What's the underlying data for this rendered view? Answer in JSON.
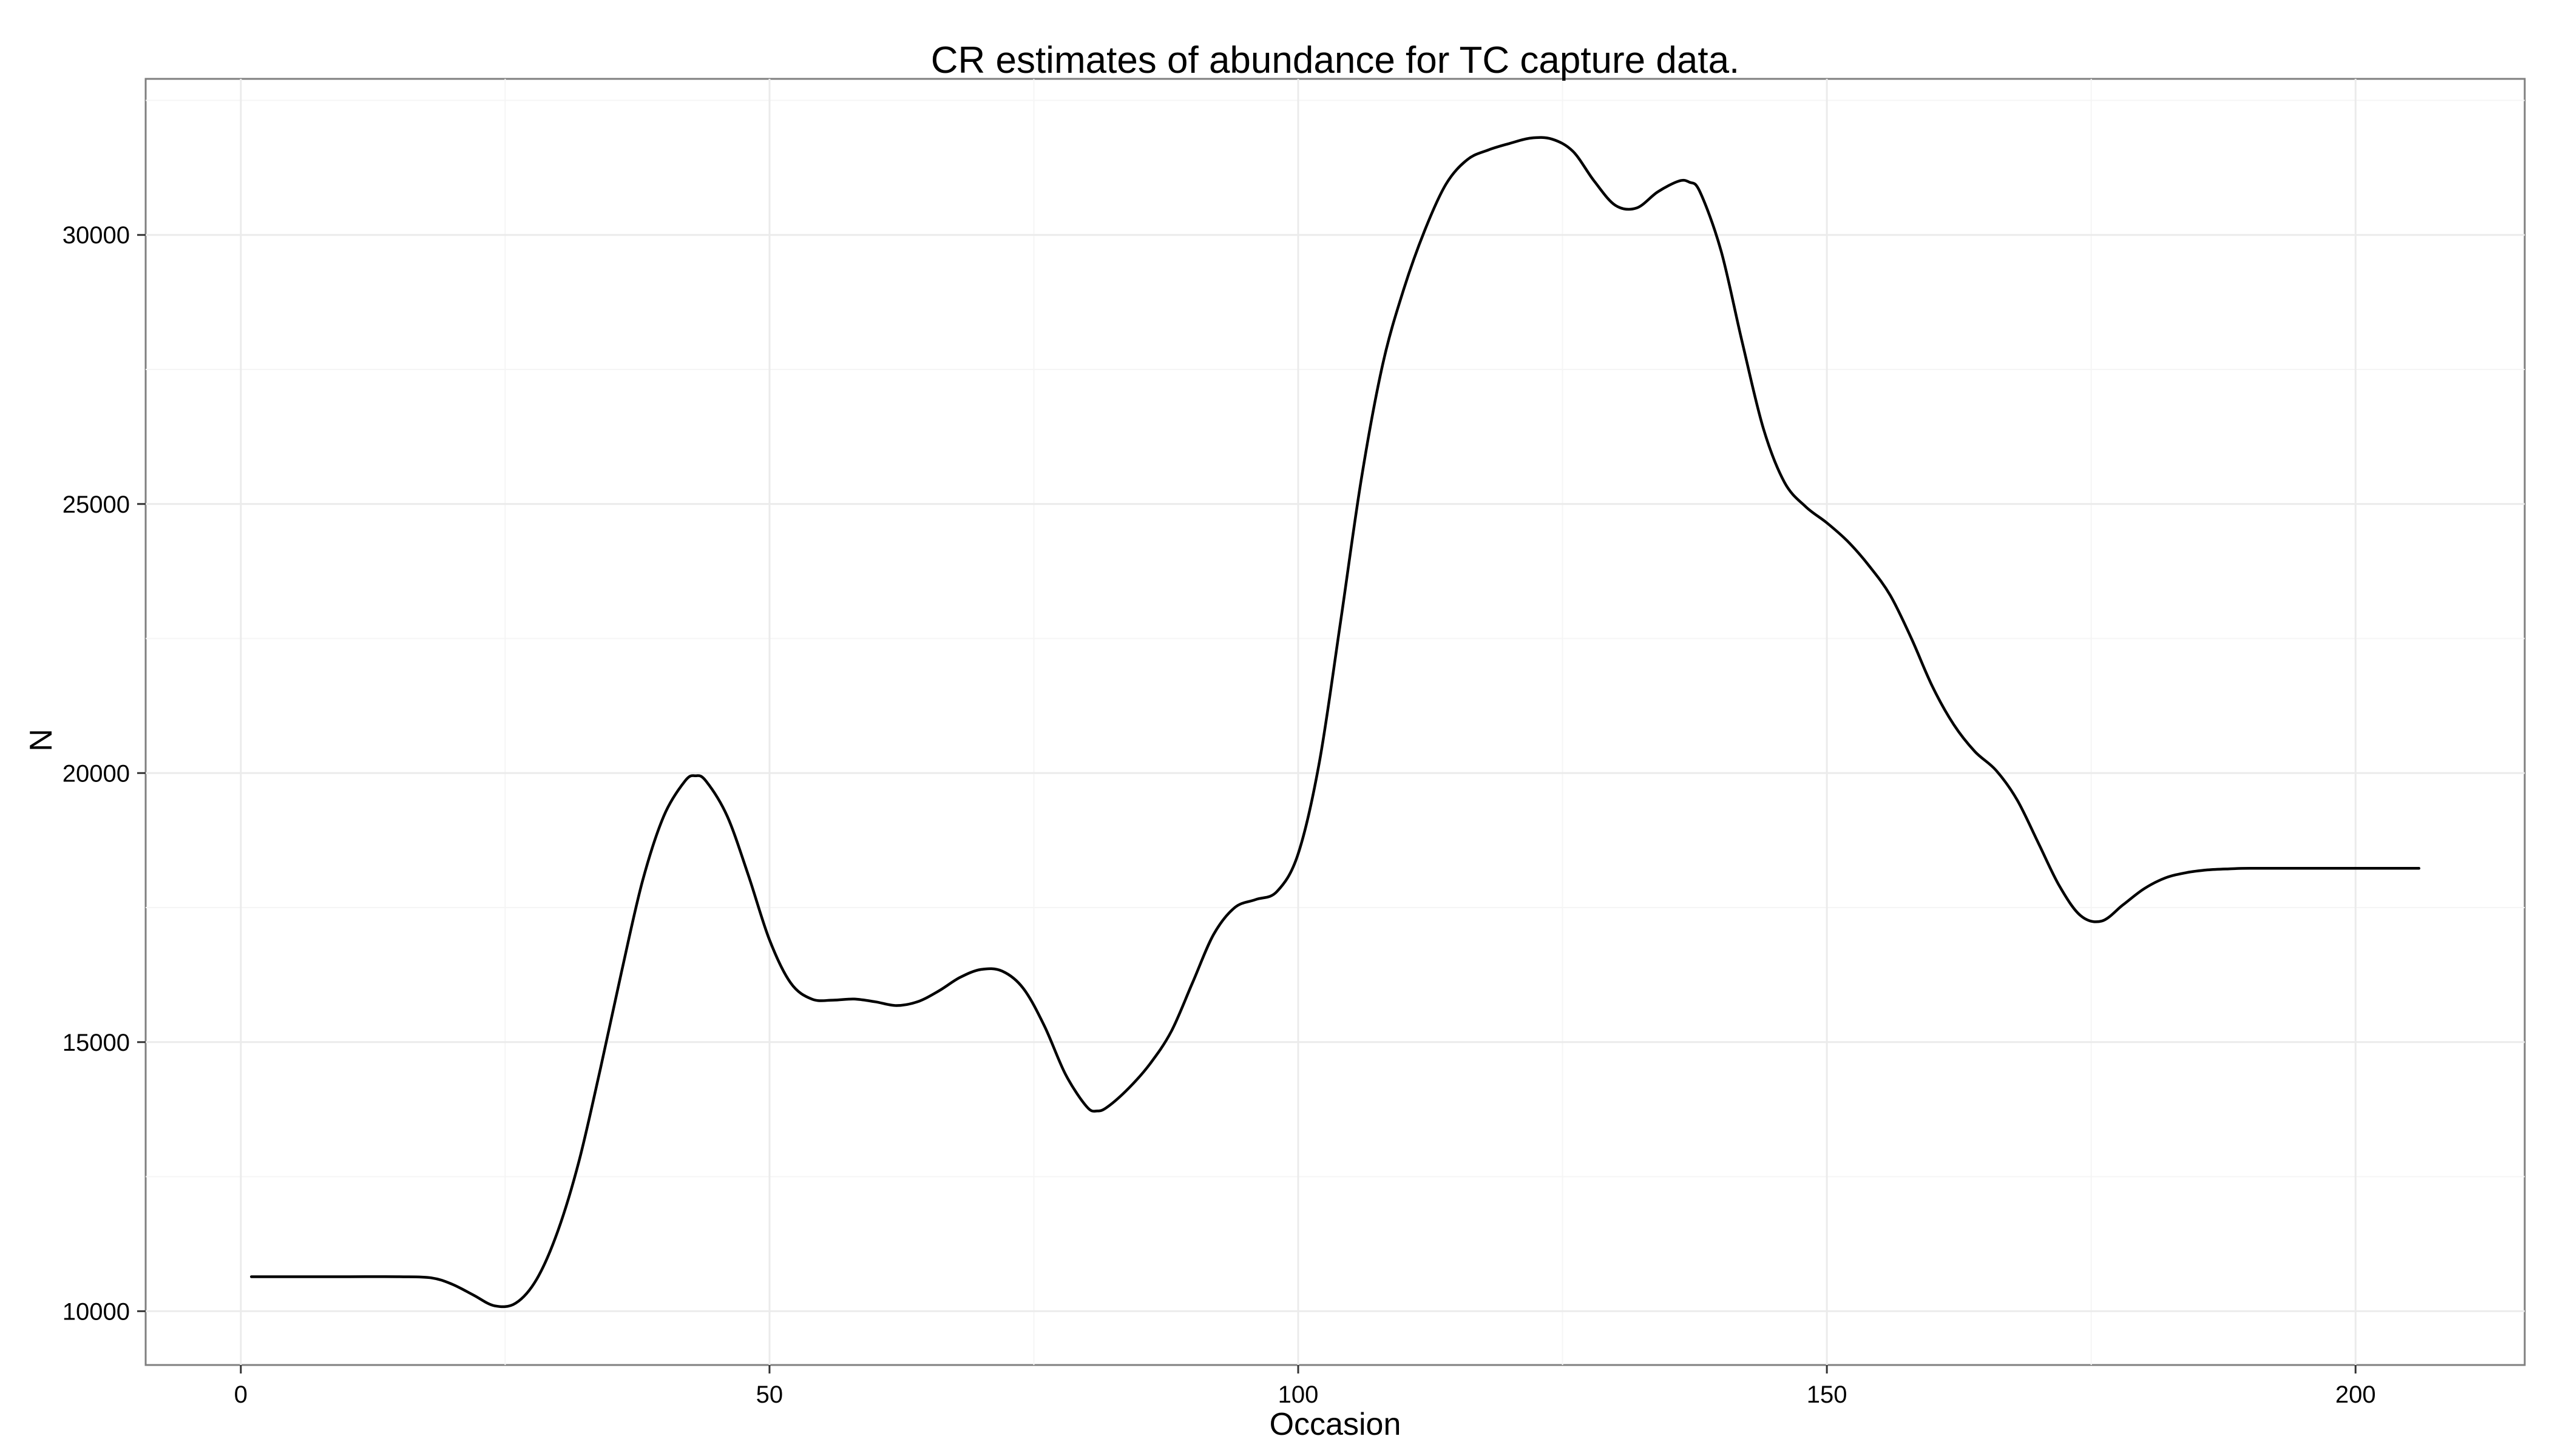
{
  "chart_data": {
    "type": "line",
    "title": "CR estimates of abundance for TC capture data.",
    "xlabel": "Occasion",
    "ylabel": "N",
    "xlim": [
      -9,
      216
    ],
    "ylim": [
      9000,
      32900
    ],
    "x_ticks": [
      0,
      50,
      100,
      150,
      200
    ],
    "y_ticks": [
      10000,
      15000,
      20000,
      25000,
      30000
    ],
    "x_tick_labels": [
      "0",
      "50",
      "100",
      "150",
      "200"
    ],
    "y_tick_labels": [
      "10000",
      "15000",
      "20000",
      "25000",
      "30000"
    ],
    "grid": true,
    "line_color": "#000000",
    "series": [
      {
        "x": [
          1,
          5,
          10,
          15,
          18,
          20,
          22,
          24,
          26,
          28,
          30,
          32,
          34,
          36,
          38,
          40,
          42,
          43,
          44,
          46,
          48,
          50,
          52,
          54,
          56,
          58,
          60,
          62,
          64,
          66,
          68,
          70,
          72,
          74,
          76,
          78,
          80,
          81,
          82,
          84,
          86,
          88,
          90,
          92,
          94,
          96,
          98,
          100,
          102,
          104,
          106,
          108,
          110,
          112,
          114,
          116,
          118,
          120,
          122,
          124,
          126,
          128,
          130,
          132,
          134,
          136,
          137,
          138,
          140,
          142,
          144,
          146,
          148,
          150,
          152,
          154,
          156,
          158,
          160,
          162,
          164,
          166,
          168,
          170,
          172,
          174,
          176,
          178,
          180,
          182,
          184,
          186,
          188,
          190,
          195,
          200,
          206
        ],
        "y": [
          10640,
          10640,
          10640,
          10640,
          10620,
          10500,
          10300,
          10100,
          10150,
          10600,
          11500,
          12800,
          14500,
          16300,
          18000,
          19200,
          19850,
          19950,
          19850,
          19200,
          18100,
          16900,
          16100,
          15800,
          15780,
          15800,
          15750,
          15680,
          15750,
          15950,
          16200,
          16350,
          16320,
          16000,
          15300,
          14400,
          13800,
          13720,
          13800,
          14150,
          14600,
          15200,
          16100,
          17000,
          17500,
          17650,
          17800,
          18500,
          20200,
          22800,
          25500,
          27600,
          29000,
          30100,
          30950,
          31400,
          31580,
          31700,
          31800,
          31780,
          31550,
          31000,
          30550,
          30500,
          30800,
          31000,
          30980,
          30800,
          29700,
          28000,
          26400,
          25400,
          24950,
          24650,
          24300,
          23850,
          23300,
          22500,
          21600,
          20900,
          20400,
          20050,
          19500,
          18700,
          17900,
          17350,
          17250,
          17550,
          17850,
          18050,
          18150,
          18200,
          18220,
          18230,
          18230,
          18230,
          18230
        ]
      }
    ]
  }
}
